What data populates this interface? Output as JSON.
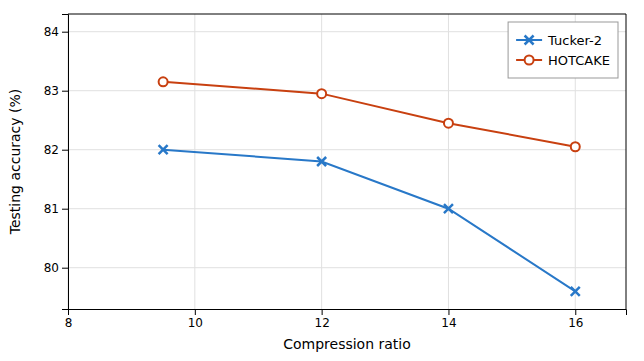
{
  "chart_data": {
    "type": "line",
    "xlabel": "Compression ratio",
    "ylabel": "Testing accuracy (%)",
    "x": [
      9.5,
      12,
      14,
      16
    ],
    "series": [
      {
        "name": "Tucker-2",
        "color": "#2878c8",
        "marker": "x",
        "values": [
          82.0,
          81.8,
          81.0,
          79.6
        ]
      },
      {
        "name": "HOTCAKE",
        "color": "#c84010",
        "marker": "circle",
        "values": [
          83.15,
          82.95,
          82.45,
          82.05
        ]
      }
    ],
    "xlim": [
      8,
      16.8
    ],
    "ylim": [
      79.3,
      84.3
    ],
    "xticks": [
      8,
      10,
      12,
      14,
      16
    ],
    "yticks": [
      80,
      81,
      82,
      83,
      84
    ],
    "grid": true,
    "legend": "upper right"
  }
}
